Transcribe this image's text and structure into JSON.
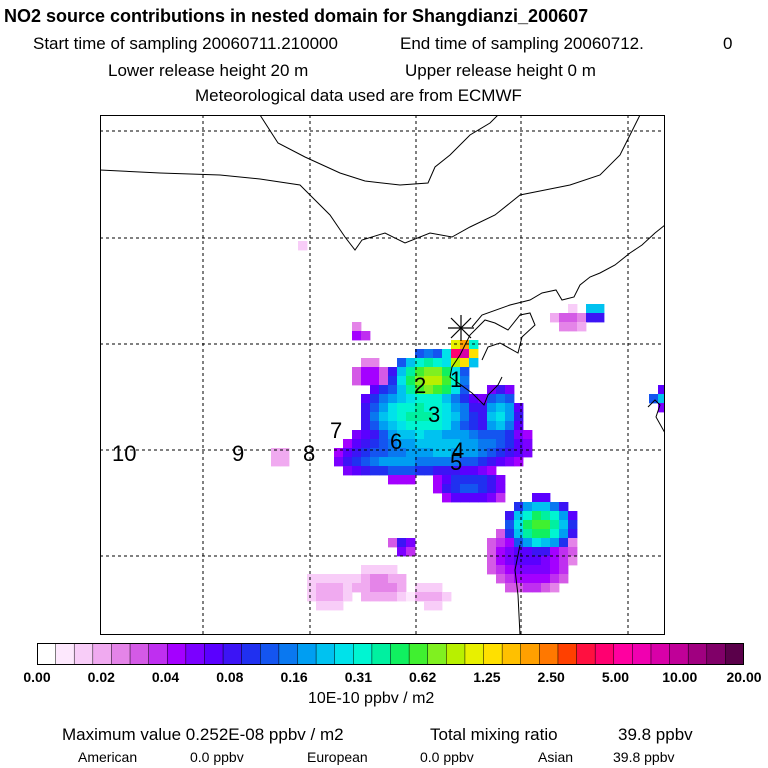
{
  "header": {
    "title": "NO2 source contributions in nested domain for Shangdianzi_200607",
    "start_label": "Start time of sampling 20060711.210000",
    "end_label": "End time of sampling 20060712.",
    "end_suffix": "0",
    "lower_label": "Lower release height   20 m",
    "upper_label": "Upper release height    0 m",
    "met_label": "Meteorological data used are from ECMWF"
  },
  "chart_data": {
    "type": "heatmap",
    "title": "NO2 source contributions in nested domain for Shangdianzi_200607",
    "colorbar": {
      "ticks": [
        "0.00",
        "0.02",
        "0.04",
        "0.08",
        "0.16",
        "0.31",
        "0.62",
        "1.25",
        "2.50",
        "5.00",
        "10.00",
        "20.00"
      ],
      "unit": "10E-10 ppbv / m2",
      "colors": [
        "#ffffff",
        "#fde8fd",
        "#f8cdf8",
        "#f0aaf0",
        "#e484e8",
        "#d45ae6",
        "#bf2ff0",
        "#a400ff",
        "#7b00ff",
        "#5a00ff",
        "#3c14f5",
        "#2030f0",
        "#1455f0",
        "#0a78f0",
        "#009ef2",
        "#00c2f0",
        "#00e2ea",
        "#00f5d2",
        "#00f0a0",
        "#10f060",
        "#40f030",
        "#80f020",
        "#b8f000",
        "#e8f000",
        "#ffe000",
        "#ffc000",
        "#ffa000",
        "#ff7800",
        "#ff4000",
        "#ff1040",
        "#ff0070",
        "#ff00a0",
        "#f000b0",
        "#d800a8",
        "#c00098",
        "#a00080",
        "#800068",
        "#5a004a"
      ]
    },
    "markers": [
      "1",
      "2",
      "3",
      "4",
      "5",
      "6",
      "7",
      "8",
      "9",
      "10"
    ],
    "receptor": "Shangdianzi"
  },
  "footer": {
    "max_label": "Maximum value  0.252E-08 ppbv / m2",
    "total_label": "Total mixing ratio",
    "total_value": "39.8 ppbv",
    "american_label": "American",
    "american_value": "0.0 ppbv",
    "european_label": "European",
    "european_value": "0.0 ppbv",
    "asian_label": "Asian",
    "asian_value": "39.8 ppbv"
  }
}
